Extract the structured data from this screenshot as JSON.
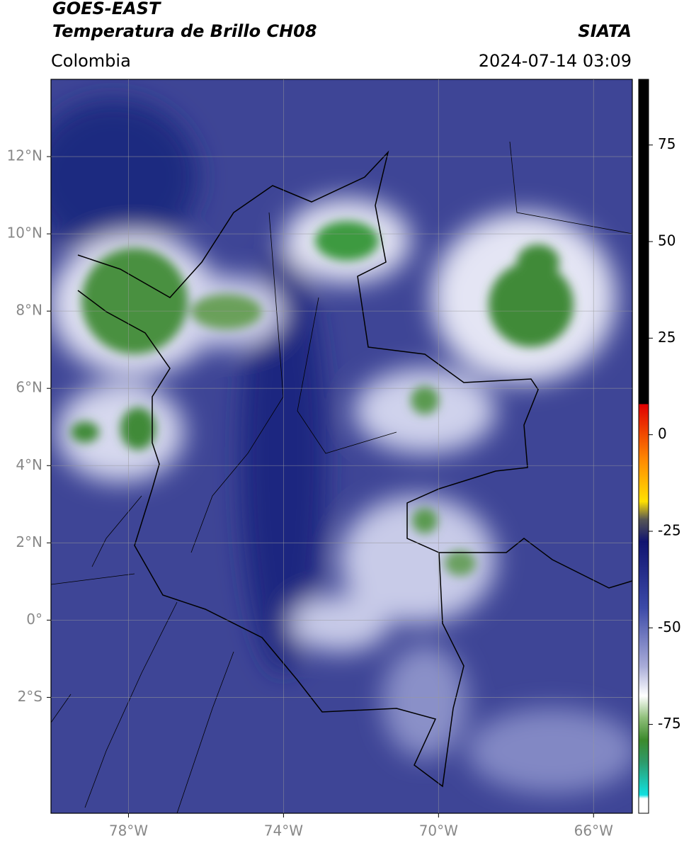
{
  "chart_data": {
    "type": "map",
    "title": "GOES-EAST",
    "subtitle": "Temperatura de Brillo CH08",
    "source": "SIATA",
    "region": "Colombia",
    "timestamp": "2024-07-14 03:09",
    "xlim": [
      -80,
      -65
    ],
    "ylim": [
      -5,
      14
    ],
    "xticks": [
      {
        "value": -78,
        "label": "78°W"
      },
      {
        "value": -74,
        "label": "74°W"
      },
      {
        "value": -70,
        "label": "70°W"
      },
      {
        "value": -66,
        "label": "66°W"
      }
    ],
    "yticks": [
      {
        "value": 12,
        "label": "12°N"
      },
      {
        "value": 10,
        "label": "10°N"
      },
      {
        "value": 8,
        "label": "8°N"
      },
      {
        "value": 6,
        "label": "6°N"
      },
      {
        "value": 4,
        "label": "4°N"
      },
      {
        "value": 2,
        "label": "2°N"
      },
      {
        "value": 0,
        "label": "0°"
      },
      {
        "value": -2,
        "label": "2°S"
      }
    ],
    "grid": true,
    "colorbar": {
      "lim": [
        -98,
        92
      ],
      "ticks": [
        75,
        50,
        25,
        0,
        -25,
        -50,
        -75
      ]
    }
  }
}
